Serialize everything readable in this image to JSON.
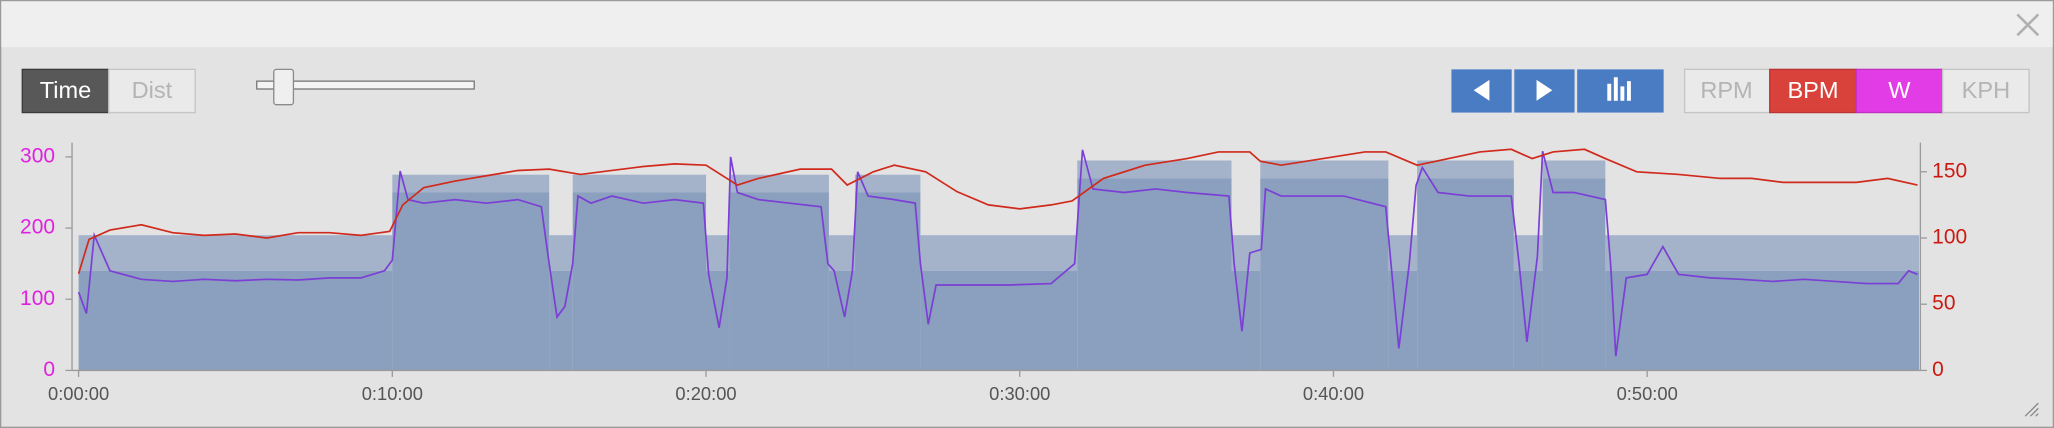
{
  "ui": {
    "toggle": [
      "Time",
      "Dist"
    ],
    "metric_buttons": [
      "RPM",
      "KPH"
    ]
  },
  "chart_data": {
    "type": "line",
    "xlim": [
      0,
      3520
    ],
    "xticks": [
      {
        "value": 0,
        "label": "0:00:00"
      },
      {
        "value": 600,
        "label": "0:10:00"
      },
      {
        "value": 1200,
        "label": "0:20:00"
      },
      {
        "value": 1800,
        "label": "0:30:00"
      },
      {
        "value": 2400,
        "label": "0:40:00"
      },
      {
        "value": 3000,
        "label": "0:50:00"
      }
    ],
    "ylim": [
      0,
      320
    ],
    "yticks": [
      0,
      100,
      200,
      300
    ],
    "ytick_color": "#e020e0",
    "y2lim": [
      0,
      172
    ],
    "y2ticks": [
      0,
      50,
      100,
      150
    ],
    "y2tick_color": "#cc1a10",
    "target_zones": {
      "color_low": "#8b9fbe",
      "color_high": "#a5b3ca",
      "segments": [
        {
          "start": 0,
          "end": 600,
          "low": 140,
          "high": 190
        },
        {
          "start": 600,
          "end": 900,
          "low": 250,
          "high": 275
        },
        {
          "start": 900,
          "end": 945,
          "low": 140,
          "high": 190
        },
        {
          "start": 945,
          "end": 1200,
          "low": 250,
          "high": 275
        },
        {
          "start": 1200,
          "end": 1245,
          "low": 140,
          "high": 190
        },
        {
          "start": 1245,
          "end": 1435,
          "low": 250,
          "high": 275
        },
        {
          "start": 1435,
          "end": 1485,
          "low": 140,
          "high": 190
        },
        {
          "start": 1485,
          "end": 1610,
          "low": 250,
          "high": 275
        },
        {
          "start": 1610,
          "end": 1910,
          "low": 140,
          "high": 190
        },
        {
          "start": 1910,
          "end": 2205,
          "low": 270,
          "high": 295
        },
        {
          "start": 2205,
          "end": 2260,
          "low": 140,
          "high": 190
        },
        {
          "start": 2260,
          "end": 2505,
          "low": 270,
          "high": 295
        },
        {
          "start": 2505,
          "end": 2560,
          "low": 140,
          "high": 190
        },
        {
          "start": 2560,
          "end": 2745,
          "low": 270,
          "high": 295
        },
        {
          "start": 2745,
          "end": 2800,
          "low": 140,
          "high": 190
        },
        {
          "start": 2800,
          "end": 2920,
          "low": 270,
          "high": 295
        },
        {
          "start": 2920,
          "end": 3520,
          "low": 140,
          "high": 190
        }
      ]
    },
    "series": [
      {
        "name": "W",
        "color": "#7b3fd6",
        "button_color": "#e23ce6",
        "axis": "y",
        "x": [
          0,
          15,
          30,
          60,
          120,
          180,
          240,
          300,
          360,
          420,
          480,
          540,
          585,
          600,
          615,
          630,
          660,
          720,
          780,
          840,
          885,
          900,
          915,
          930,
          945,
          955,
          980,
          1020,
          1080,
          1140,
          1195,
          1205,
          1225,
          1240,
          1247,
          1260,
          1300,
          1360,
          1420,
          1433,
          1445,
          1465,
          1480,
          1490,
          1510,
          1560,
          1600,
          1610,
          1625,
          1640,
          1700,
          1780,
          1860,
          1905,
          1920,
          1940,
          2000,
          2060,
          2120,
          2200,
          2210,
          2225,
          2240,
          2262,
          2270,
          2300,
          2360,
          2420,
          2500,
          2510,
          2525,
          2545,
          2558,
          2570,
          2600,
          2660,
          2740,
          2755,
          2770,
          2790,
          2800,
          2820,
          2860,
          2920,
          2930,
          2940,
          2960,
          3000,
          3030,
          3060,
          3120,
          3180,
          3240,
          3300,
          3360,
          3420,
          3480,
          3500,
          3517
        ],
        "values": [
          110,
          80,
          190,
          140,
          128,
          125,
          128,
          126,
          128,
          127,
          130,
          130,
          140,
          155,
          280,
          240,
          235,
          240,
          235,
          240,
          230,
          150,
          75,
          90,
          150,
          245,
          235,
          245,
          235,
          240,
          235,
          135,
          60,
          130,
          300,
          250,
          240,
          235,
          230,
          150,
          140,
          75,
          140,
          279,
          245,
          240,
          235,
          150,
          65,
          120,
          120,
          120,
          122,
          150,
          310,
          255,
          250,
          255,
          250,
          245,
          150,
          55,
          165,
          170,
          255,
          245,
          245,
          245,
          230,
          150,
          31,
          150,
          260,
          285,
          250,
          245,
          245,
          150,
          40,
          160,
          308,
          250,
          250,
          240,
          150,
          20,
          130,
          135,
          174,
          135,
          130,
          128,
          125,
          128,
          125,
          122,
          122,
          140,
          135
        ]
      },
      {
        "name": "BPM",
        "color": "#d02a1c",
        "button_color": "#d9423b",
        "axis": "y2",
        "x": [
          0,
          20,
          60,
          120,
          180,
          240,
          300,
          360,
          420,
          480,
          540,
          595,
          620,
          660,
          720,
          780,
          840,
          900,
          960,
          1020,
          1080,
          1140,
          1200,
          1260,
          1300,
          1380,
          1440,
          1470,
          1520,
          1560,
          1620,
          1680,
          1740,
          1800,
          1860,
          1900,
          1960,
          2040,
          2120,
          2180,
          2240,
          2260,
          2300,
          2380,
          2460,
          2500,
          2560,
          2620,
          2680,
          2740,
          2780,
          2820,
          2880,
          2920,
          2980,
          3060,
          3140,
          3200,
          3260,
          3320,
          3400,
          3460,
          3517
        ],
        "values": [
          73,
          99,
          106,
          110,
          104,
          102,
          103,
          100,
          104,
          104,
          102,
          105,
          125,
          138,
          143,
          147,
          151,
          152,
          148,
          151,
          154,
          156,
          155,
          140,
          145,
          152,
          152,
          140,
          150,
          155,
          150,
          135,
          125,
          122,
          125,
          128,
          145,
          155,
          160,
          165,
          165,
          158,
          155,
          160,
          165,
          165,
          155,
          160,
          165,
          167,
          160,
          165,
          167,
          160,
          150,
          148,
          145,
          145,
          142,
          142,
          142,
          145,
          140
        ]
      }
    ]
  }
}
